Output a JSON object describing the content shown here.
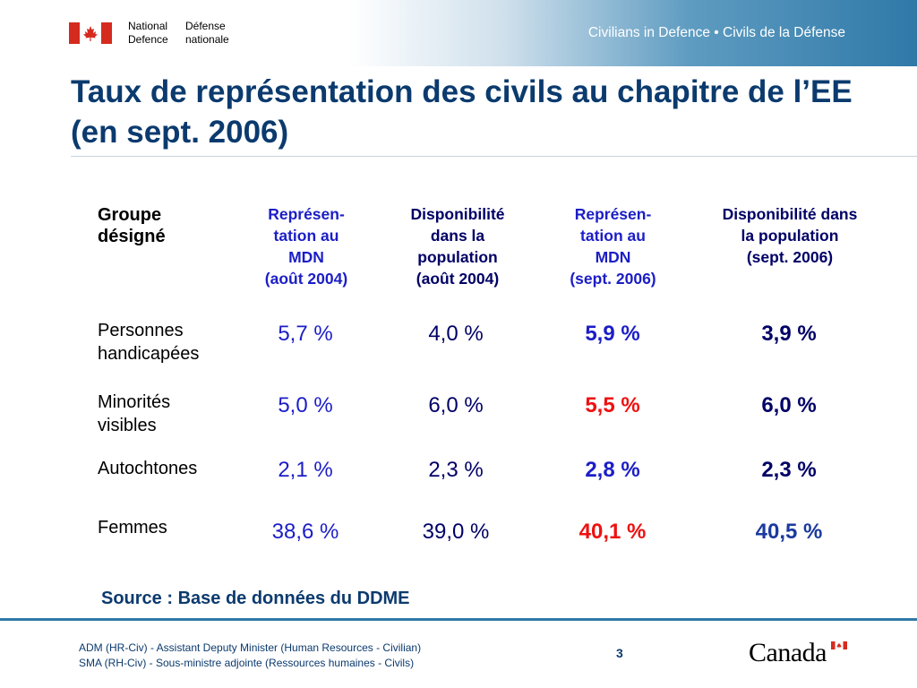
{
  "header": {
    "dept_en_line1": "National",
    "dept_en_line2": "Defence",
    "dept_fr_line1": "Défense",
    "dept_fr_line2": "nationale",
    "tagline": "Civilians in Defence • Civils de la Défense"
  },
  "title": "Taux de représentation des civils au chapitre de l’EE (en sept. 2006)",
  "table": {
    "headers": {
      "group": [
        "Groupe",
        "désigné"
      ],
      "col1": [
        "Représen-",
        "tation au",
        "MDN",
        "(août 2004)"
      ],
      "col2": [
        "Disponibilité",
        "dans la",
        "population",
        "(août 2004)"
      ],
      "col3": [
        "Représen-",
        "tation au",
        "MDN",
        "(sept. 2006)"
      ],
      "col4": [
        "Disponibilité dans",
        "la population",
        "(sept. 2006)"
      ]
    },
    "rows": [
      {
        "label": [
          "Personnes",
          "handicapées"
        ],
        "c1": "5,7 %",
        "c2": "4,0 %",
        "c3": "5,9 %",
        "c4": "3,9 %"
      },
      {
        "label": [
          "Minorités",
          "visibles"
        ],
        "c1": "5,0 %",
        "c2": "6,0 %",
        "c3": "5,5 %",
        "c4": "6,0 %"
      },
      {
        "label": [
          "Autochtones"
        ],
        "c1": "2,1 %",
        "c2": "2,3 %",
        "c3": "2,8 %",
        "c4": "2,3 %"
      },
      {
        "label": [
          "Femmes"
        ],
        "c1": "38,6 %",
        "c2": "39,0 %",
        "c3": "40,1 %",
        "c4": "40,5 %"
      }
    ]
  },
  "source": "Source : Base de données du DDME",
  "footer": {
    "line1": "ADM (HR-Civ) - Assistant Deputy Minister (Human Resources - Civilian)",
    "line2": "SMA (RH-Civ) - Sous-ministre adjointe (Ressources humaines - Civils)",
    "page": "3",
    "wordmark": "Canada"
  },
  "colors": {
    "title": "#0b3a6e",
    "header_blue": "#1b1ec6",
    "header_navy": "#000066",
    "highlight_red": "#ee1111",
    "banner": "#2f79a8"
  }
}
